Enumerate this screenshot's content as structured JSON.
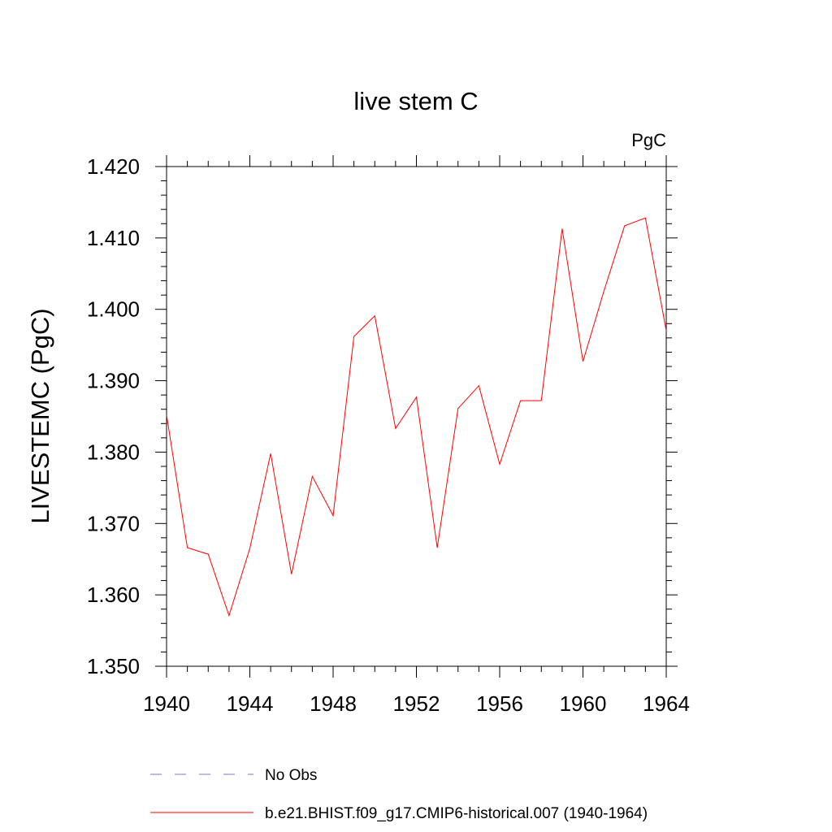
{
  "chart_data": {
    "type": "line",
    "title": "live stem C",
    "units_label": "PgC",
    "xlabel": "",
    "ylabel": "LIVESTEMC  (PgC)",
    "xlim": [
      1940,
      1964
    ],
    "ylim": [
      1.35,
      1.42
    ],
    "x_ticks": [
      1940,
      1944,
      1948,
      1952,
      1956,
      1960,
      1964
    ],
    "x_tick_labels": [
      "1940",
      "1944",
      "1948",
      "1952",
      "1956",
      "1960",
      "1964"
    ],
    "y_ticks": [
      1.35,
      1.36,
      1.37,
      1.38,
      1.39,
      1.4,
      1.41,
      1.42
    ],
    "y_tick_labels": [
      "1.350",
      "1.360",
      "1.370",
      "1.380",
      "1.390",
      "1.400",
      "1.410",
      "1.420"
    ],
    "grid": false,
    "legend_position": "bottom",
    "series": [
      {
        "name": "No Obs",
        "color": "#7b7bc8",
        "dash": true,
        "x": [],
        "values": []
      },
      {
        "name": "b.e21.BHIST.f09_g17.CMIP6-historical.007 (1940-1964)",
        "color": "#ff0000",
        "dash": false,
        "x": [
          1940,
          1941,
          1942,
          1943,
          1944,
          1945,
          1946,
          1947,
          1948,
          1949,
          1950,
          1951,
          1952,
          1953,
          1954,
          1955,
          1956,
          1957,
          1958,
          1959,
          1960,
          1961,
          1962,
          1963,
          1964
        ],
        "values": [
          1.3852,
          1.3666,
          1.3657,
          1.3571,
          1.3665,
          1.3798,
          1.3629,
          1.3766,
          1.3711,
          1.3962,
          1.3991,
          1.3833,
          1.3877,
          1.3666,
          1.3861,
          1.3893,
          1.3783,
          1.3872,
          1.3872,
          1.4113,
          1.3927,
          1.4025,
          1.4117,
          1.4128,
          1.397
        ]
      }
    ]
  }
}
